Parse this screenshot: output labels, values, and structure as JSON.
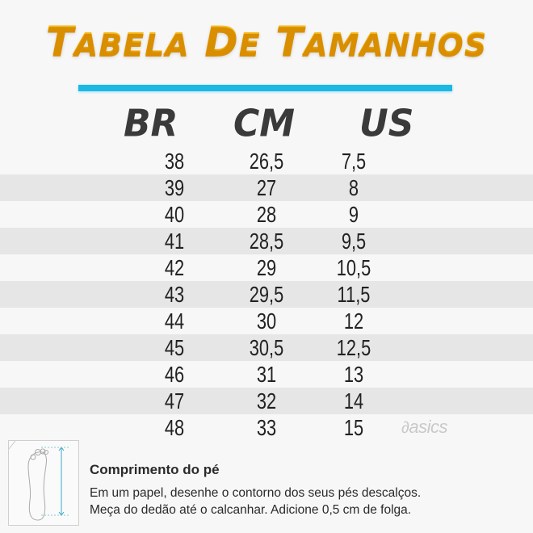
{
  "title": "Tabela de Tamanhos",
  "accent_color": "#1cb8e4",
  "title_color": "#fbb713",
  "headers": {
    "br": "BR",
    "cm": "CM",
    "us": "US"
  },
  "rows": [
    {
      "br": "38",
      "cm": "26,5",
      "us": "7,5"
    },
    {
      "br": "39",
      "cm": "27",
      "us": "8"
    },
    {
      "br": "40",
      "cm": "28",
      "us": "9"
    },
    {
      "br": "41",
      "cm": "28,5",
      "us": "9,5"
    },
    {
      "br": "42",
      "cm": "29",
      "us": "10,5"
    },
    {
      "br": "43",
      "cm": "29,5",
      "us": "11,5"
    },
    {
      "br": "44",
      "cm": "30",
      "us": "12"
    },
    {
      "br": "45",
      "cm": "30,5",
      "us": "12,5"
    },
    {
      "br": "46",
      "cm": "31",
      "us": "13"
    },
    {
      "br": "47",
      "cm": "32",
      "us": "14"
    },
    {
      "br": "48",
      "cm": "33",
      "us": "15"
    }
  ],
  "brand": "asics",
  "info": {
    "icon": "foot-measure-icon",
    "title": "Comprimento do pé",
    "line1": "Em um papel, desenhe o contorno dos seus pés descalços.",
    "line2": "Meça do dedão até o calcanhar. Adicione 0,5 cm de folga."
  }
}
